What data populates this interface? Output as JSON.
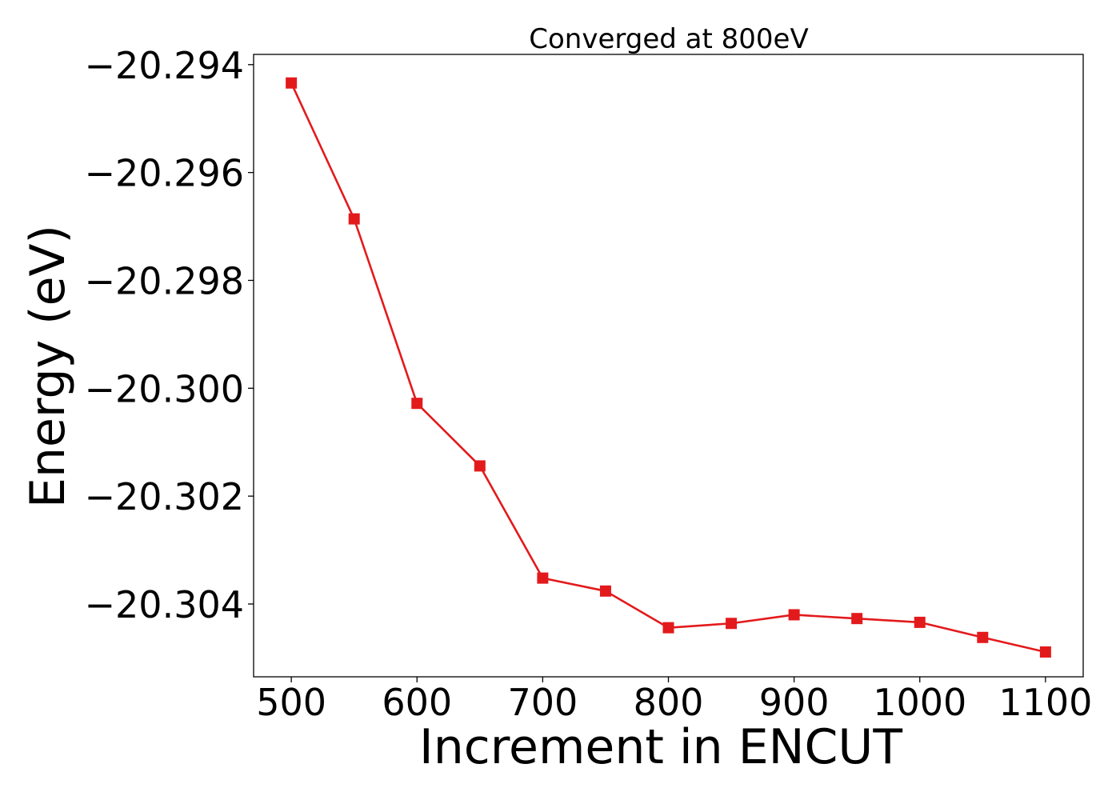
{
  "chart_data": {
    "type": "line",
    "title": "Converged at 800eV",
    "xlabel": "Increment in ENCUT",
    "ylabel": "Energy (eV)",
    "x": [
      500,
      550,
      600,
      650,
      700,
      750,
      800,
      850,
      900,
      950,
      1000,
      1050,
      1100
    ],
    "series": [
      {
        "values": [
          -20.29434,
          -20.29686,
          -20.30028,
          -20.30144,
          -20.30352,
          -20.30376,
          -20.30444,
          -20.30436,
          -20.3042,
          -20.30427,
          -20.30434,
          -20.30462,
          -20.30489
        ],
        "color": "#e31a1c",
        "marker": "square"
      }
    ],
    "xlim": [
      470,
      1130
    ],
    "ylim": [
      -20.30535,
      -20.29381
    ],
    "xticks": [
      500,
      600,
      700,
      800,
      900,
      1000,
      1100
    ],
    "xtick_labels": [
      "500",
      "600",
      "700",
      "800",
      "900",
      "1000",
      "1100"
    ],
    "yticks": [
      -20.294,
      -20.296,
      -20.298,
      -20.3,
      -20.302,
      -20.304
    ],
    "ytick_labels": [
      "−20.294",
      "−20.296",
      "−20.298",
      "−20.300",
      "−20.302",
      "−20.304"
    ],
    "grid": false
  }
}
